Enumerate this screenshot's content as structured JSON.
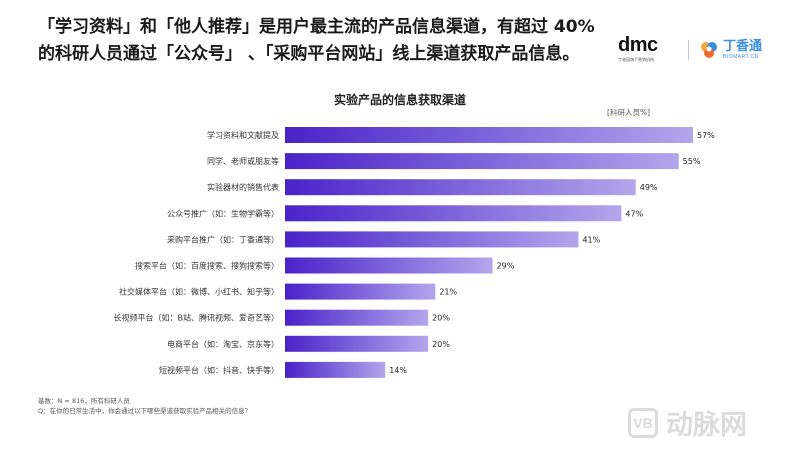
{
  "header": {
    "headline_line1": "「学习资料」和「他人推荐」是用户最主流的产品信息渠道，有超过 40%",
    "headline_line2": "的科研人员通过「公众号」 、「采购平台网站」线上渠道获取产品信息。"
  },
  "logos": {
    "dmc_text": "dmc",
    "dmc_sub": "丁香园旗下营销机构",
    "dx_name": "丁香通",
    "dx_domain": "BIOMART.CN"
  },
  "chart_data": {
    "type": "bar",
    "orientation": "horizontal",
    "title": "实验产品的信息获取渠道",
    "unit_label": "[科研人员%]",
    "categories": [
      "学习资料和文献提及",
      "同学、老师或朋友等",
      "实验器材的销售代表",
      "公众号推广（如：生物学霸等）",
      "采购平台推广（如：丁香通等）",
      "搜索平台（如：百度搜索、搜狗搜索等）",
      "社交媒体平台（如：微博、小红书、知乎等）",
      "长视频平台（如：B站、腾讯视频、爱奇艺等）",
      "电商平台（如：淘宝、京东等）",
      "短视频平台（如：抖音、快手等）"
    ],
    "values": [
      57,
      55,
      49,
      47,
      41,
      29,
      21,
      20,
      20,
      14
    ],
    "value_labels": [
      "57%",
      "55%",
      "49%",
      "47%",
      "41%",
      "29%",
      "21%",
      "20%",
      "20%",
      "14%"
    ],
    "xlim": [
      0,
      57
    ],
    "grid": false,
    "colors": {
      "bar_start": "#4a22c9",
      "bar_end": "#b3a6ec"
    }
  },
  "footer": {
    "base": "基数：N = 816，所有科研人员",
    "question": "Q：在你的日常生活中，你会通过以下哪些渠道获取实验产品相关的信息？"
  },
  "watermark": {
    "icon_text": "VB",
    "text": "动脉网"
  }
}
